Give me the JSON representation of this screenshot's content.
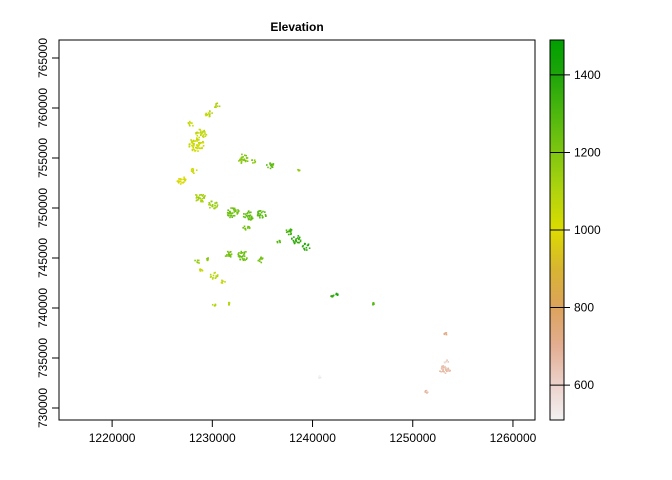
{
  "chart_data": {
    "type": "raster-map",
    "title": "Elevation",
    "xlabel": "",
    "ylabel": "",
    "xlim": [
      1214700,
      1262200
    ],
    "ylim": [
      728800,
      766800
    ],
    "x_ticks": [
      1220000,
      1230000,
      1240000,
      1250000,
      1260000
    ],
    "x_tick_labels": [
      "1220000",
      "1230000",
      "1240000",
      "1250000",
      "1260000"
    ],
    "y_ticks": [
      730000,
      735000,
      740000,
      745000,
      750000,
      755000,
      760000,
      765000
    ],
    "y_tick_labels": [
      "730000",
      "735000",
      "740000",
      "745000",
      "750000",
      "755000",
      "760000",
      "765000"
    ],
    "grid": false,
    "legend": {
      "type": "colorbar",
      "placement": "right",
      "range": [
        510,
        1490
      ],
      "ticks": [
        600,
        800,
        1000,
        1200,
        1400
      ],
      "tick_labels": [
        "600",
        "800",
        "1000",
        "1200",
        "1400"
      ],
      "colors": [
        {
          "value": 510,
          "color": "#f2f2f2"
        },
        {
          "value": 600,
          "color": "#ecd2cc"
        },
        {
          "value": 700,
          "color": "#e3ae92"
        },
        {
          "value": 800,
          "color": "#dca35c"
        },
        {
          "value": 900,
          "color": "#d8b531"
        },
        {
          "value": 1000,
          "color": "#dcdc00"
        },
        {
          "value": 1100,
          "color": "#b0d40e"
        },
        {
          "value": 1200,
          "color": "#7fc611"
        },
        {
          "value": 1300,
          "color": "#4eb70e"
        },
        {
          "value": 1400,
          "color": "#1ea50a"
        },
        {
          "value": 1490,
          "color": "#00a000"
        }
      ]
    },
    "patches": [
      {
        "x": 1228300,
        "y": 756400,
        "r": 800,
        "elev": 1040
      },
      {
        "x": 1228800,
        "y": 757500,
        "r": 550,
        "elev": 1060
      },
      {
        "x": 1229600,
        "y": 759500,
        "r": 400,
        "elev": 1080
      },
      {
        "x": 1230400,
        "y": 760300,
        "r": 300,
        "elev": 1090
      },
      {
        "x": 1227800,
        "y": 758500,
        "r": 300,
        "elev": 1050
      },
      {
        "x": 1226800,
        "y": 752900,
        "r": 500,
        "elev": 1010
      },
      {
        "x": 1228100,
        "y": 753800,
        "r": 300,
        "elev": 1020
      },
      {
        "x": 1233000,
        "y": 755000,
        "r": 550,
        "elev": 1190
      },
      {
        "x": 1234000,
        "y": 754700,
        "r": 250,
        "elev": 1180
      },
      {
        "x": 1235700,
        "y": 754300,
        "r": 400,
        "elev": 1260
      },
      {
        "x": 1238500,
        "y": 753800,
        "r": 150,
        "elev": 1150
      },
      {
        "x": 1228700,
        "y": 751100,
        "r": 550,
        "elev": 1120
      },
      {
        "x": 1230000,
        "y": 750400,
        "r": 500,
        "elev": 1150
      },
      {
        "x": 1232000,
        "y": 749600,
        "r": 650,
        "elev": 1240
      },
      {
        "x": 1233500,
        "y": 749300,
        "r": 550,
        "elev": 1260
      },
      {
        "x": 1234800,
        "y": 749400,
        "r": 500,
        "elev": 1280
      },
      {
        "x": 1233300,
        "y": 748100,
        "r": 350,
        "elev": 1220
      },
      {
        "x": 1237500,
        "y": 747700,
        "r": 400,
        "elev": 1320
      },
      {
        "x": 1238300,
        "y": 746900,
        "r": 500,
        "elev": 1360
      },
      {
        "x": 1239300,
        "y": 746200,
        "r": 400,
        "elev": 1380
      },
      {
        "x": 1236500,
        "y": 746700,
        "r": 200,
        "elev": 1290
      },
      {
        "x": 1233000,
        "y": 745300,
        "r": 550,
        "elev": 1240
      },
      {
        "x": 1231500,
        "y": 745400,
        "r": 450,
        "elev": 1230
      },
      {
        "x": 1234800,
        "y": 744900,
        "r": 350,
        "elev": 1220
      },
      {
        "x": 1229500,
        "y": 745000,
        "r": 200,
        "elev": 1180
      },
      {
        "x": 1228400,
        "y": 744700,
        "r": 250,
        "elev": 1150
      },
      {
        "x": 1230100,
        "y": 743300,
        "r": 400,
        "elev": 1080
      },
      {
        "x": 1231000,
        "y": 742700,
        "r": 250,
        "elev": 1070
      },
      {
        "x": 1228800,
        "y": 743800,
        "r": 200,
        "elev": 1060
      },
      {
        "x": 1230100,
        "y": 740400,
        "r": 150,
        "elev": 1090
      },
      {
        "x": 1231600,
        "y": 740500,
        "r": 150,
        "elev": 1090
      },
      {
        "x": 1242500,
        "y": 741400,
        "r": 250,
        "elev": 1390
      },
      {
        "x": 1241900,
        "y": 741300,
        "r": 150,
        "elev": 1370
      },
      {
        "x": 1246000,
        "y": 740500,
        "r": 60,
        "elev": 1300
      },
      {
        "x": 1253200,
        "y": 737500,
        "r": 150,
        "elev": 720
      },
      {
        "x": 1253100,
        "y": 733900,
        "r": 500,
        "elev": 660
      },
      {
        "x": 1253700,
        "y": 733900,
        "r": 300,
        "elev": 650
      },
      {
        "x": 1253300,
        "y": 734700,
        "r": 250,
        "elev": 600
      },
      {
        "x": 1251300,
        "y": 731700,
        "r": 150,
        "elev": 680
      },
      {
        "x": 1240600,
        "y": 733200,
        "r": 60,
        "elev": 520
      }
    ]
  }
}
